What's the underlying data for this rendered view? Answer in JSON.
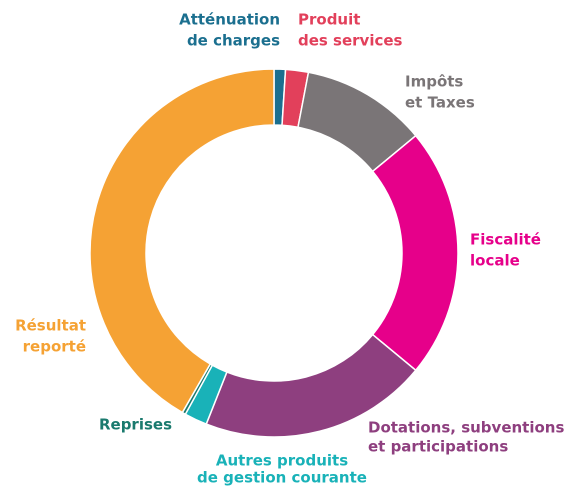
{
  "chart_data": {
    "type": "donut",
    "categories": [
      [
        "Atténuation",
        "de charges"
      ],
      [
        "Produit",
        "des services"
      ],
      [
        "Impôts",
        "et Taxes"
      ],
      [
        "Fiscalité",
        "locale"
      ],
      [
        "Dotations, subventions",
        "et participations"
      ],
      [
        "Autres produits",
        "de gestion courante"
      ],
      [
        "Reprises"
      ],
      [
        "Résultat",
        "reporté"
      ]
    ],
    "values": [
      1,
      2,
      11,
      22,
      20,
      2,
      0.3,
      41.7
    ],
    "colors": [
      "#1b6f8f",
      "#e2405b",
      "#7a7577",
      "#e6008a",
      "#8e3f7f",
      "#19b2b8",
      "#1a7a6e",
      "#f5a234"
    ]
  }
}
